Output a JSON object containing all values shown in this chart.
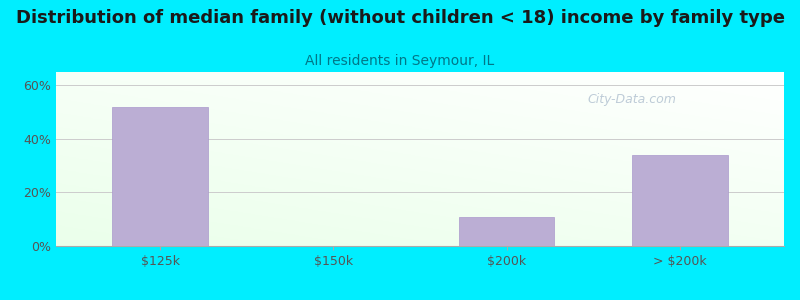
{
  "title": "Distribution of median family (without children < 18) income by family type",
  "subtitle": "All residents in Seymour, IL",
  "categories": [
    "$125k",
    "$150k",
    "$200k",
    "> $200k"
  ],
  "values": [
    52.0,
    0.0,
    11.0,
    34.0
  ],
  "bar_color": "#bbaed4",
  "bar_edge_color": "#aa99cc",
  "title_color": "#1a1a1a",
  "subtitle_color": "#007788",
  "background_color": "#00eeff",
  "ylabel_ticks": [
    "0%",
    "20%",
    "40%",
    "60%"
  ],
  "ytick_values": [
    0,
    20,
    40,
    60
  ],
  "ylim": [
    0,
    65
  ],
  "title_fontsize": 13,
  "subtitle_fontsize": 10,
  "watermark": "City-Data.com",
  "watermark_color": "#aabbcc"
}
